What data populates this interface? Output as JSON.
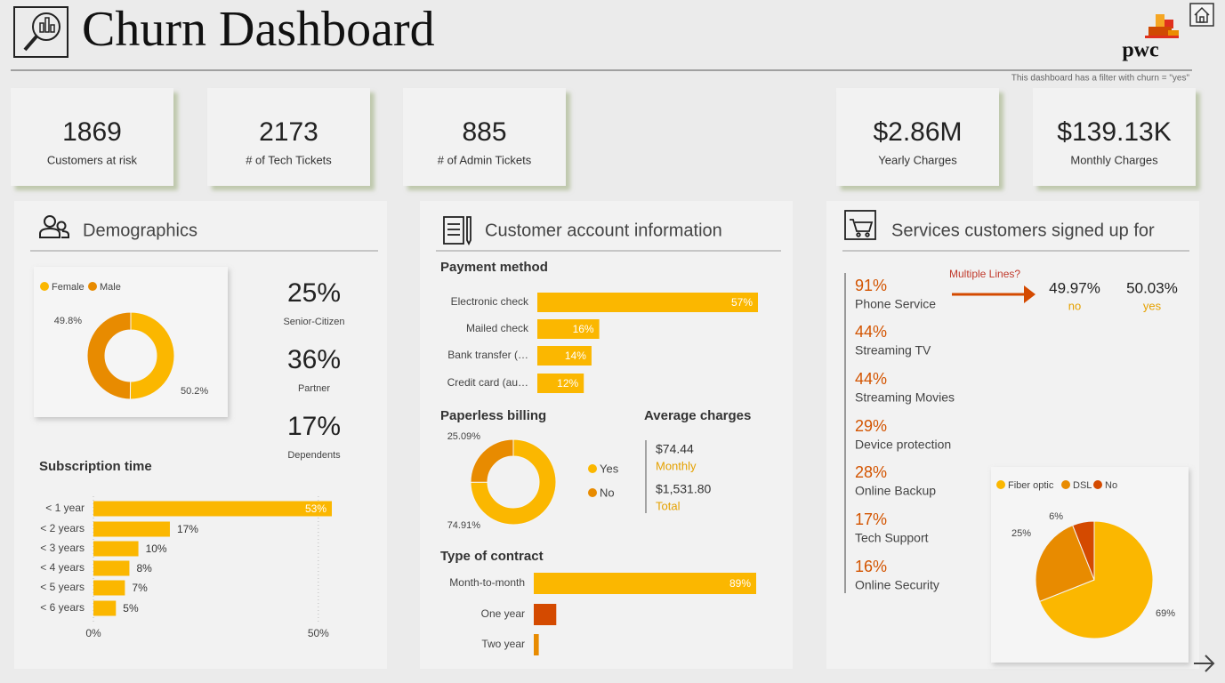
{
  "header": {
    "title": "Churn Dashboard",
    "logo": "pwc",
    "note": "This dashboard has a filter with churn = \"yes\""
  },
  "kpis": [
    {
      "value": "1869",
      "label": "Customers at risk"
    },
    {
      "value": "2173",
      "label": "# of Tech Tickets"
    },
    {
      "value": "885",
      "label": "# of Admin Tickets"
    },
    {
      "value": "$2.86M",
      "label": "Yearly Charges"
    },
    {
      "value": "$139.13K",
      "label": "Monthly Charges"
    }
  ],
  "demographics": {
    "title": "Demographics",
    "gender": {
      "type": "donut",
      "categories": [
        "Female",
        "Male"
      ],
      "values": [
        50.2,
        49.8
      ],
      "value_labels": [
        "50.2%",
        "49.8%"
      ],
      "colors": [
        "#fbb700",
        "#e88b00"
      ]
    },
    "stats": [
      {
        "value": "25%",
        "label": "Senior-Citizen"
      },
      {
        "value": "36%",
        "label": "Partner"
      },
      {
        "value": "17%",
        "label": "Dependents"
      }
    ],
    "subscription": {
      "type": "hbar",
      "title": "Subscription time",
      "categories": [
        "< 1 year",
        "< 2 years",
        "< 3 years",
        "< 4 years",
        "< 5 years",
        "< 6 years"
      ],
      "values": [
        53,
        17,
        10,
        8,
        7,
        5
      ],
      "value_labels": [
        "53%",
        "17%",
        "10%",
        "8%",
        "7%",
        "5%"
      ],
      "color": "#fbb700",
      "xlim": [
        0,
        53
      ],
      "xticks": [
        {
          "value": 0,
          "label": "0%"
        },
        {
          "value": 50,
          "label": "50%"
        }
      ],
      "grid": true
    }
  },
  "account": {
    "title": "Customer account information",
    "payment": {
      "type": "hbar",
      "title": "Payment method",
      "categories": [
        "Electronic check",
        "Mailed check",
        "Bank transfer (…",
        "Credit card (au…"
      ],
      "values": [
        57,
        16,
        14,
        12
      ],
      "value_labels": [
        "57%",
        "16%",
        "14%",
        "12%"
      ],
      "color": "#fbb700",
      "xlim": [
        0,
        57
      ]
    },
    "paperless": {
      "type": "donut",
      "title": "Paperless billing",
      "categories": [
        "Yes",
        "No"
      ],
      "values": [
        74.91,
        25.09
      ],
      "value_labels": [
        "74.91%",
        "25.09%"
      ],
      "colors": [
        "#fbb700",
        "#e88b00"
      ]
    },
    "charges": {
      "title": "Average charges",
      "items": [
        {
          "value": "$74.44",
          "label": "Monthly"
        },
        {
          "value": "$1,531.80",
          "label": "Total"
        }
      ]
    },
    "contract": {
      "type": "hbar",
      "title": "Type of contract",
      "categories": [
        "Month-to-month",
        "One year",
        "Two year"
      ],
      "values": [
        89,
        9,
        2
      ],
      "value_labels": [
        "89%",
        null,
        null
      ],
      "colors": [
        "#fbb700",
        "#d44a00",
        "#e88b00"
      ],
      "xlim": [
        0,
        89
      ]
    }
  },
  "services": {
    "title": "Services customers signed up for",
    "items": [
      {
        "value": "91%",
        "label": "Phone Service"
      },
      {
        "value": "44%",
        "label": "Streaming TV"
      },
      {
        "value": "44%",
        "label": "Streaming Movies"
      },
      {
        "value": "29%",
        "label": "Device protection"
      },
      {
        "value": "28%",
        "label": "Online Backup"
      },
      {
        "value": "17%",
        "label": "Tech Support"
      },
      {
        "value": "16%",
        "label": "Online Security"
      }
    ],
    "multiple_lines": {
      "title": "Multiple Lines?",
      "items": [
        {
          "value": "49.97%",
          "label": "no"
        },
        {
          "value": "50.03%",
          "label": "yes"
        }
      ]
    },
    "internet": {
      "type": "pie",
      "categories": [
        "Fiber optic",
        "DSL",
        "No"
      ],
      "values": [
        69,
        25,
        6
      ],
      "value_labels": [
        "69%",
        "25%",
        "6%"
      ],
      "colors": [
        "#fbb700",
        "#e88b00",
        "#d44a00"
      ]
    }
  }
}
